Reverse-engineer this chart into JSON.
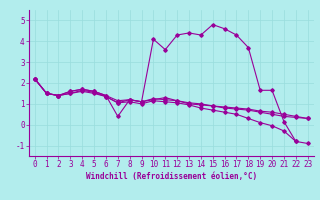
{
  "xlabel": "Windchill (Refroidissement éolien,°C)",
  "background_color": "#b2eded",
  "grid_color": "#99dddd",
  "line_color": "#990099",
  "xlim": [
    -0.5,
    23.5
  ],
  "ylim": [
    -1.5,
    5.5
  ],
  "yticks": [
    -1,
    0,
    1,
    2,
    3,
    4,
    5
  ],
  "xticks": [
    0,
    1,
    2,
    3,
    4,
    5,
    6,
    7,
    8,
    9,
    10,
    11,
    12,
    13,
    14,
    15,
    16,
    17,
    18,
    19,
    20,
    21,
    22,
    23
  ],
  "series": [
    [
      2.2,
      1.5,
      1.4,
      1.6,
      1.7,
      1.6,
      1.4,
      0.4,
      1.2,
      1.1,
      1.2,
      1.3,
      1.15,
      1.05,
      1.0,
      0.9,
      0.8,
      0.75,
      0.7,
      0.6,
      0.5,
      0.4,
      0.35,
      0.3
    ],
    [
      2.2,
      1.5,
      1.4,
      1.6,
      1.7,
      1.6,
      1.4,
      1.15,
      1.2,
      1.1,
      4.1,
      3.6,
      4.3,
      4.4,
      4.3,
      4.8,
      4.6,
      4.3,
      3.7,
      1.65,
      1.65,
      0.15,
      -0.8,
      null
    ],
    [
      2.2,
      1.5,
      1.4,
      1.5,
      1.65,
      1.55,
      1.35,
      1.05,
      1.2,
      1.1,
      1.25,
      1.2,
      1.15,
      1.0,
      0.95,
      0.9,
      0.85,
      0.8,
      0.75,
      0.65,
      0.6,
      0.5,
      0.4,
      0.3
    ],
    [
      2.2,
      1.5,
      1.4,
      1.5,
      1.6,
      1.5,
      1.35,
      1.05,
      1.1,
      1.0,
      1.15,
      1.1,
      1.05,
      0.95,
      0.8,
      0.7,
      0.6,
      0.5,
      0.3,
      0.1,
      -0.05,
      -0.3,
      -0.8,
      -0.9
    ]
  ],
  "xlabel_fontsize": 5.5,
  "tick_fontsize": 5.5,
  "marker": "D",
  "markersize": 1.8,
  "linewidth": 0.8
}
